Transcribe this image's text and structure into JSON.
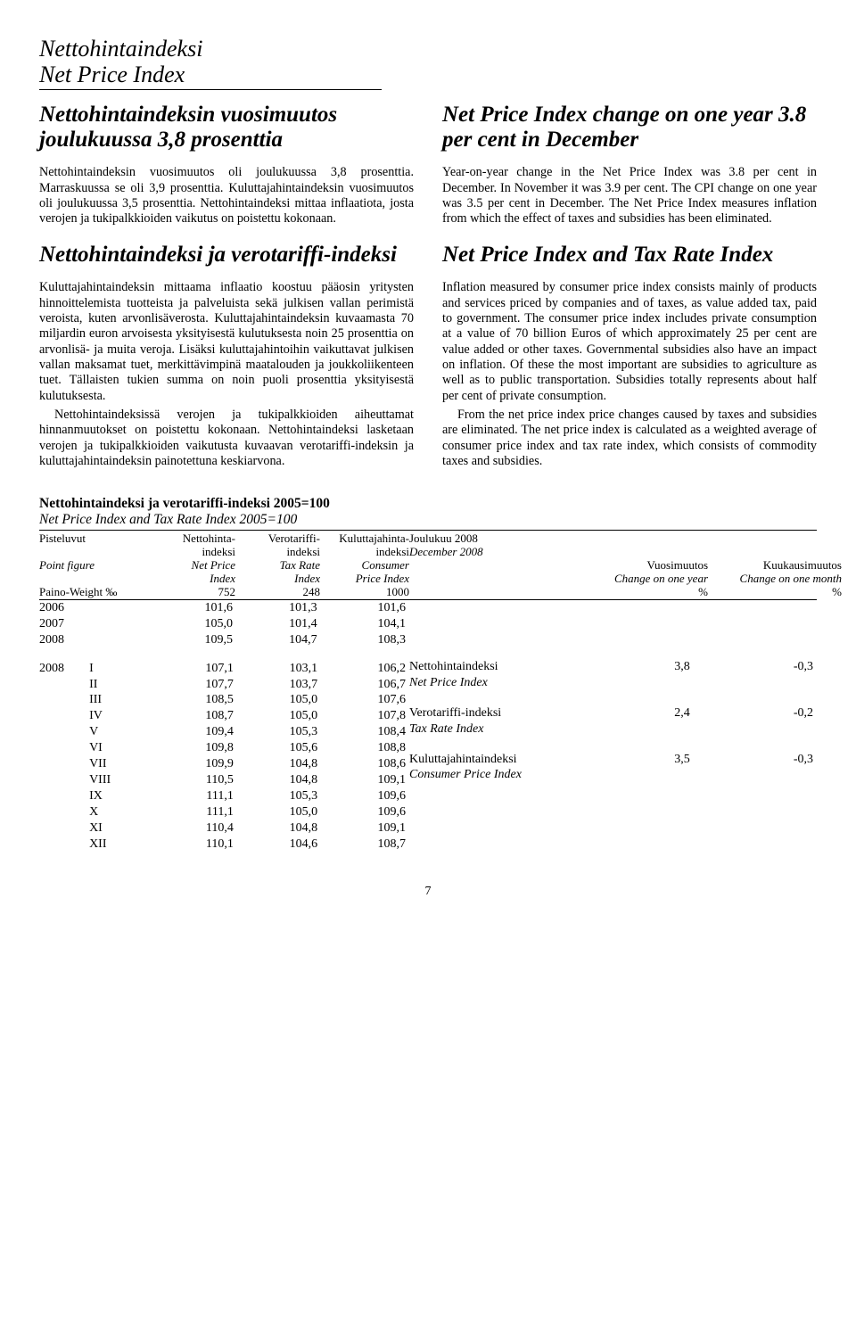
{
  "header": {
    "title_fi": "Nettohintaindeksi",
    "title_en": "Net Price Index"
  },
  "left_col": {
    "heading": "Nettohintaindeksin vuosimuutos joulukuussa 3,8 prosenttia",
    "p1": "Nettohintaindeksin vuosimuutos oli joulukuussa 3,8 prosenttia. Marraskuussa se oli 3,9 prosenttia. Kuluttajahintaindeksin vuosimuutos oli joulukuussa 3,5 prosenttia. Nettohintaindeksi mittaa inflaatiota, josta verojen ja tukipalkkioiden vaikutus on poistettu kokonaan.",
    "subhead": "Nettohintaindeksi ja verotariffi-indeksi",
    "p2": "Kuluttajahintaindeksin mittaama inflaatio koostuu pääosin yritysten hinnoittelemista tuotteista ja palveluista sekä julkisen vallan perimistä veroista, kuten arvonlisäverosta. Kuluttajahintaindeksin kuvaamasta 70 miljardin euron arvoisesta yksityisestä kulutuksesta noin 25 prosenttia on arvonlisä- ja muita veroja. Lisäksi kuluttajahintoihin vaikuttavat julkisen vallan maksamat tuet, merkittävimpinä maatalouden ja joukkoliikenteen tuet. Tällaisten tukien summa on noin puoli prosenttia yksityisestä kulutuksesta.",
    "p3": "Nettohintaindeksissä verojen ja tukipalkkioiden aiheuttamat hinnanmuutokset on poistettu kokonaan. Nettohintaindeksi lasketaan verojen ja tukipalkkioiden vaikutusta kuvaavan verotariffi-indeksin ja kuluttajahintaindeksin painotettuna keskiarvona."
  },
  "right_col": {
    "heading": "Net Price Index change on one year 3.8 per cent in December",
    "p1": "Year-on-year change in the Net Price Index was 3.8 per cent in December. In November it was 3.9 per cent. The CPI change on one year was 3.5 per cent in December. The Net Price Index measures inflation from which the effect of taxes and subsidies has been eliminated.",
    "subhead": "Net Price Index and Tax Rate Index",
    "p2": "Inflation measured by consumer price index consists mainly of products and services priced by companies and of taxes, as value added tax, paid to government. The consumer price index includes private consumption at a value of 70 billion Euros of which approximately 25 per cent are value added or other taxes. Governmental subsidies also have an impact on inflation. Of these the most important are subsidies to agriculture as well as to public transportation. Subsidies totally represents about half per cent of private consumption.",
    "p3": "From the net price index price changes caused by taxes and subsidies are eliminated. The net price index is calculated as a weighted average of consumer price index and tax rate index, which consists of commodity taxes and subsidies."
  },
  "table": {
    "title": "Nettohintaindeksi ja verotariffi-indeksi 2005=100",
    "subtitle": "Net Price Index and Tax Rate Index 2005=100",
    "headers_left": {
      "c0": {
        "l1": "Pisteluvut",
        "l2": "",
        "l3_it": "Point figure",
        "l4": "",
        "l5": "Paino-Weight ‰"
      },
      "c1": {
        "l1": "Nettohinta-",
        "l2": "indeksi",
        "l3_it": "Net Price",
        "l4_it": "Index",
        "l5": "752"
      },
      "c2": {
        "l1": "Verotariffi-",
        "l2": "indeksi",
        "l3_it": "Tax Rate",
        "l4_it": "Index",
        "l5": "248"
      },
      "c3": {
        "l1": "Kuluttajahinta-",
        "l2": "indeksi",
        "l3_it": "Consumer",
        "l4_it": "Price Index",
        "l5": "1000"
      }
    },
    "headers_right": {
      "r0": {
        "l1": "Joulukuu 2008",
        "l2_it": "December 2008"
      },
      "r1": {
        "l1": "Vuosimuutos",
        "l2_it": "Change on one year",
        "l3": "%"
      },
      "r2": {
        "l1": "Kuukausimuutos",
        "l2_it": "Change on one month",
        "l3": "%"
      }
    },
    "annual": [
      {
        "y": "2006",
        "v1": "101,6",
        "v2": "101,3",
        "v3": "101,6"
      },
      {
        "y": "2007",
        "v1": "105,0",
        "v2": "101,4",
        "v3": "104,1"
      },
      {
        "y": "2008",
        "v1": "109,5",
        "v2": "104,7",
        "v3": "108,3"
      }
    ],
    "monthly": [
      {
        "y": "2008",
        "m": "I",
        "v1": "107,1",
        "v2": "103,1",
        "v3": "106,2"
      },
      {
        "y": "",
        "m": "II",
        "v1": "107,7",
        "v2": "103,7",
        "v3": "106,7"
      },
      {
        "y": "",
        "m": "III",
        "v1": "108,5",
        "v2": "105,0",
        "v3": "107,6"
      },
      {
        "y": "",
        "m": "IV",
        "v1": "108,7",
        "v2": "105,0",
        "v3": "107,8"
      },
      {
        "y": "",
        "m": "V",
        "v1": "109,4",
        "v2": "105,3",
        "v3": "108,4"
      },
      {
        "y": "",
        "m": "VI",
        "v1": "109,8",
        "v2": "105,6",
        "v3": "108,8"
      },
      {
        "y": "",
        "m": "VII",
        "v1": "109,9",
        "v2": "104,8",
        "v3": "108,6"
      },
      {
        "y": "",
        "m": "VIII",
        "v1": "110,5",
        "v2": "104,8",
        "v3": "109,1"
      },
      {
        "y": "",
        "m": "IX",
        "v1": "111,1",
        "v2": "105,3",
        "v3": "109,6"
      },
      {
        "y": "",
        "m": "X",
        "v1": "111,1",
        "v2": "105,0",
        "v3": "109,6"
      },
      {
        "y": "",
        "m": "XI",
        "v1": "110,4",
        "v2": "104,8",
        "v3": "109,1"
      },
      {
        "y": "",
        "m": "XII",
        "v1": "110,1",
        "v2": "104,6",
        "v3": "108,7"
      }
    ],
    "changes": [
      {
        "label": "Nettohintaindeksi",
        "label_it": "Net Price Index",
        "year": "3,8",
        "month": "-0,3"
      },
      {
        "label": "Verotariffi-indeksi",
        "label_it": "Tax Rate Index",
        "year": "2,4",
        "month": "-0,2"
      },
      {
        "label": "Kuluttajahintaindeksi",
        "label_it": "Consumer Price Index",
        "year": "3,5",
        "month": "-0,3"
      }
    ]
  },
  "page_number": "7"
}
